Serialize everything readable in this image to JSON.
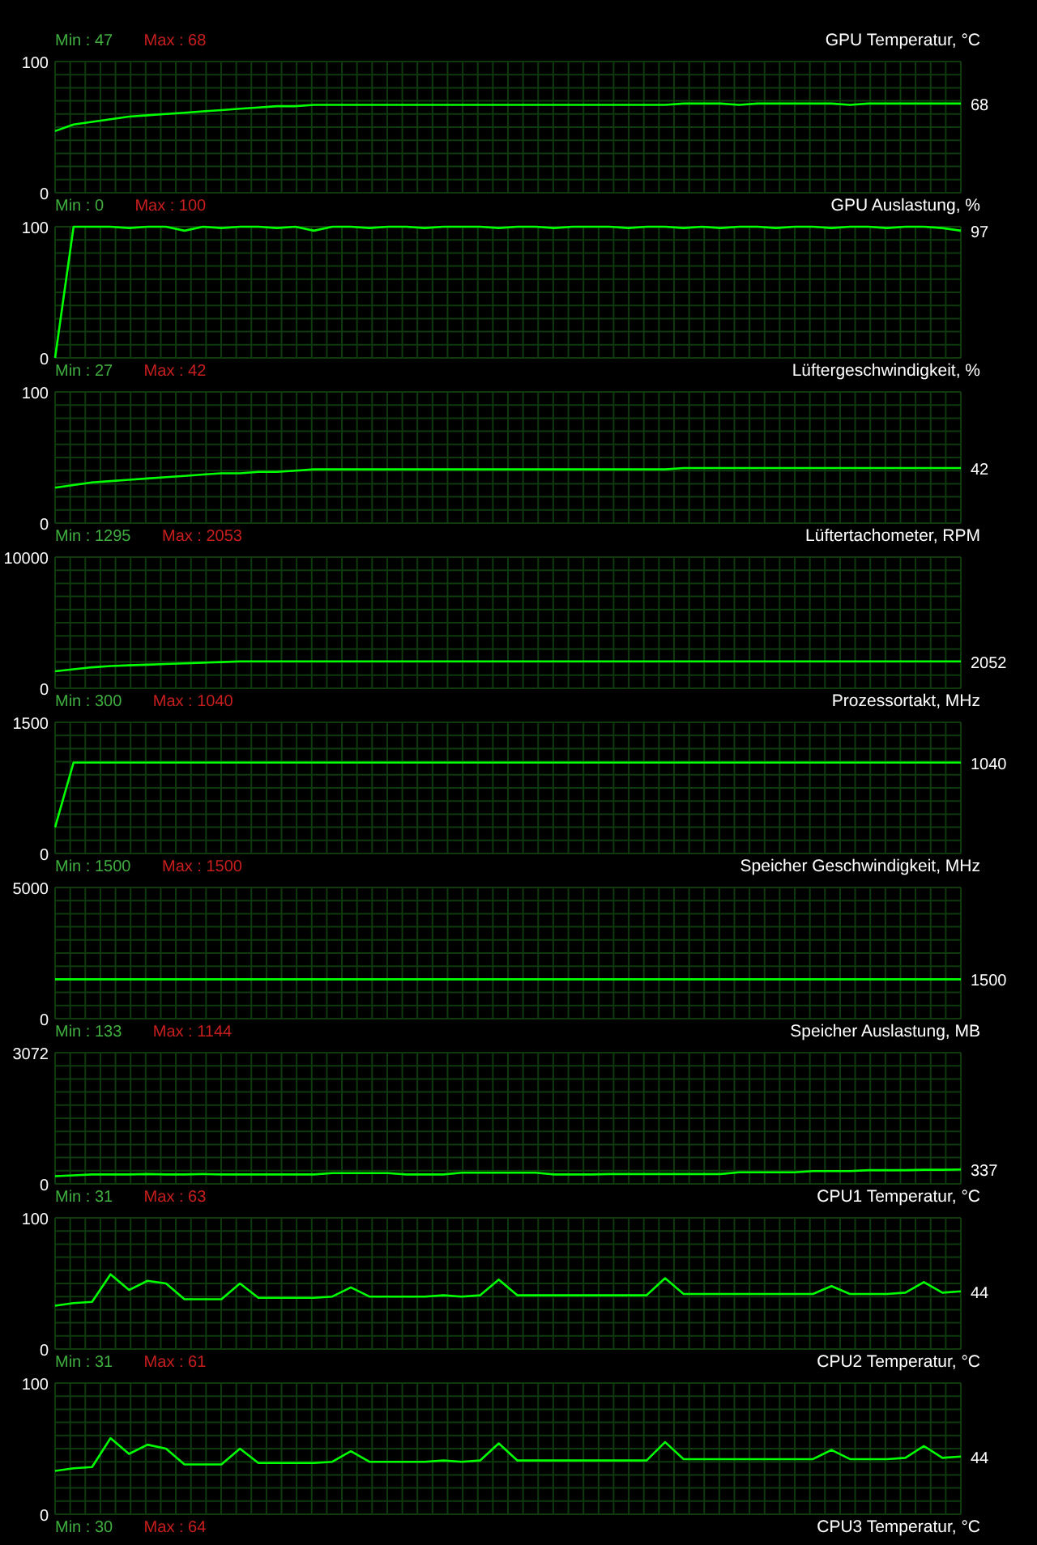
{
  "chart_data": [
    {
      "type": "line",
      "title": "GPU Temperatur, °C",
      "categories": [
        null,
        null,
        null,
        null,
        null,
        null,
        null,
        null,
        null,
        null,
        null,
        null,
        null,
        null,
        null,
        null,
        null,
        null,
        null,
        null,
        null,
        null,
        null,
        null,
        null,
        null,
        null,
        null,
        null,
        null,
        null,
        null,
        null,
        null,
        null,
        null,
        null,
        null,
        null,
        null,
        null,
        null,
        null,
        null,
        null,
        null,
        null,
        null,
        null,
        null
      ],
      "ylim": [
        0,
        100
      ],
      "yticks": [
        0,
        100
      ],
      "grid": true,
      "annotations": [
        "Min : 47",
        "Max : 68"
      ],
      "series": [
        {
          "color": "#00ff00",
          "values": [
            47,
            52,
            54,
            56,
            58,
            59,
            60,
            61,
            62,
            63,
            64,
            65,
            66,
            66,
            67,
            67,
            67,
            67,
            67,
            67,
            67,
            67,
            67,
            67,
            67,
            67,
            67,
            67,
            67,
            67,
            67,
            67,
            67,
            67,
            68,
            68,
            68,
            67,
            68,
            68,
            68,
            68,
            68,
            67,
            68,
            68,
            68,
            68,
            68,
            68
          ],
          "value_labels": [
            null,
            null,
            null,
            null,
            null,
            null,
            null,
            null,
            null,
            null,
            null,
            null,
            null,
            null,
            null,
            null,
            null,
            null,
            null,
            null,
            null,
            null,
            null,
            null,
            null,
            null,
            null,
            null,
            null,
            null,
            null,
            null,
            null,
            null,
            null,
            null,
            null,
            null,
            null,
            null,
            null,
            null,
            null,
            null,
            null,
            null,
            null,
            null,
            null,
            "68"
          ]
        }
      ]
    },
    {
      "type": "line",
      "title": "GPU Auslastung, %",
      "categories": [
        null,
        null,
        null,
        null,
        null,
        null,
        null,
        null,
        null,
        null,
        null,
        null,
        null,
        null,
        null,
        null,
        null,
        null,
        null,
        null,
        null,
        null,
        null,
        null,
        null,
        null,
        null,
        null,
        null,
        null,
        null,
        null,
        null,
        null,
        null,
        null,
        null,
        null,
        null,
        null,
        null,
        null,
        null,
        null,
        null,
        null,
        null,
        null,
        null,
        null
      ],
      "ylim": [
        0,
        100
      ],
      "yticks": [
        0,
        100
      ],
      "grid": true,
      "annotations": [
        "Min : 0",
        "Max : 100"
      ],
      "series": [
        {
          "color": "#00ff00",
          "values": [
            0,
            100,
            100,
            100,
            99,
            100,
            100,
            97,
            100,
            99,
            100,
            100,
            99,
            100,
            97,
            100,
            100,
            99,
            100,
            100,
            99,
            100,
            100,
            100,
            99,
            100,
            100,
            99,
            100,
            100,
            100,
            99,
            100,
            100,
            99,
            100,
            99,
            100,
            100,
            99,
            100,
            100,
            99,
            100,
            100,
            99,
            100,
            100,
            99,
            97
          ],
          "value_labels": [
            null,
            null,
            null,
            null,
            null,
            null,
            null,
            null,
            null,
            null,
            null,
            null,
            null,
            null,
            null,
            null,
            null,
            null,
            null,
            null,
            null,
            null,
            null,
            null,
            null,
            null,
            null,
            null,
            null,
            null,
            null,
            null,
            null,
            null,
            null,
            null,
            null,
            null,
            null,
            null,
            null,
            null,
            null,
            null,
            null,
            null,
            null,
            null,
            null,
            "97"
          ]
        }
      ]
    },
    {
      "type": "line",
      "title": "Lüftergeschwindigkeit, %",
      "categories": [
        null,
        null,
        null,
        null,
        null,
        null,
        null,
        null,
        null,
        null,
        null,
        null,
        null,
        null,
        null,
        null,
        null,
        null,
        null,
        null,
        null,
        null,
        null,
        null,
        null,
        null,
        null,
        null,
        null,
        null,
        null,
        null,
        null,
        null,
        null,
        null,
        null,
        null,
        null,
        null,
        null,
        null,
        null,
        null,
        null,
        null,
        null,
        null,
        null,
        null
      ],
      "ylim": [
        0,
        100
      ],
      "yticks": [
        0,
        100
      ],
      "grid": true,
      "annotations": [
        "Min : 27",
        "Max : 42"
      ],
      "series": [
        {
          "color": "#00ff00",
          "values": [
            27,
            29,
            31,
            32,
            33,
            34,
            35,
            36,
            37,
            38,
            38,
            39,
            39,
            40,
            41,
            41,
            41,
            41,
            41,
            41,
            41,
            41,
            41,
            41,
            41,
            41,
            41,
            41,
            41,
            41,
            41,
            41,
            41,
            41,
            42,
            42,
            42,
            42,
            42,
            42,
            42,
            42,
            42,
            42,
            42,
            42,
            42,
            42,
            42,
            42
          ],
          "value_labels": [
            null,
            null,
            null,
            null,
            null,
            null,
            null,
            null,
            null,
            null,
            null,
            null,
            null,
            null,
            null,
            null,
            null,
            null,
            null,
            null,
            null,
            null,
            null,
            null,
            null,
            null,
            null,
            null,
            null,
            null,
            null,
            null,
            null,
            null,
            null,
            null,
            null,
            null,
            null,
            null,
            null,
            null,
            null,
            null,
            null,
            null,
            null,
            null,
            null,
            "42"
          ]
        }
      ]
    },
    {
      "type": "line",
      "title": "Lüftertachometer, RPM",
      "categories": [
        null,
        null,
        null,
        null,
        null,
        null,
        null,
        null,
        null,
        null,
        null,
        null,
        null,
        null,
        null,
        null,
        null,
        null,
        null,
        null,
        null,
        null,
        null,
        null,
        null,
        null,
        null,
        null,
        null,
        null,
        null,
        null,
        null,
        null,
        null,
        null,
        null,
        null,
        null,
        null,
        null,
        null,
        null,
        null,
        null,
        null,
        null,
        null,
        null,
        null
      ],
      "ylim": [
        0,
        10000
      ],
      "yticks": [
        0,
        10000
      ],
      "grid": true,
      "annotations": [
        "Min : 1295",
        "Max : 2053"
      ],
      "series": [
        {
          "color": "#00ff00",
          "values": [
            1300,
            1450,
            1600,
            1700,
            1750,
            1800,
            1850,
            1900,
            1950,
            2000,
            2050,
            2050,
            2050,
            2050,
            2050,
            2050,
            2050,
            2050,
            2050,
            2050,
            2050,
            2050,
            2050,
            2050,
            2050,
            2050,
            2050,
            2050,
            2050,
            2050,
            2050,
            2050,
            2050,
            2050,
            2050,
            2050,
            2050,
            2050,
            2050,
            2050,
            2050,
            2050,
            2050,
            2050,
            2050,
            2050,
            2050,
            2050,
            2050,
            2052
          ],
          "value_labels": [
            null,
            null,
            null,
            null,
            null,
            null,
            null,
            null,
            null,
            null,
            null,
            null,
            null,
            null,
            null,
            null,
            null,
            null,
            null,
            null,
            null,
            null,
            null,
            null,
            null,
            null,
            null,
            null,
            null,
            null,
            null,
            null,
            null,
            null,
            null,
            null,
            null,
            null,
            null,
            null,
            null,
            null,
            null,
            null,
            null,
            null,
            null,
            null,
            null,
            "2052"
          ]
        }
      ]
    },
    {
      "type": "line",
      "title": "Prozessortakt, MHz",
      "categories": [
        null,
        null,
        null,
        null,
        null,
        null,
        null,
        null,
        null,
        null,
        null,
        null,
        null,
        null,
        null,
        null,
        null,
        null,
        null,
        null,
        null,
        null,
        null,
        null,
        null,
        null,
        null,
        null,
        null,
        null,
        null,
        null,
        null,
        null,
        null,
        null,
        null,
        null,
        null,
        null,
        null,
        null,
        null,
        null,
        null,
        null,
        null,
        null,
        null,
        null
      ],
      "ylim": [
        0,
        1500
      ],
      "yticks": [
        0,
        1500
      ],
      "grid": true,
      "annotations": [
        "Min : 300",
        "Max : 1040"
      ],
      "series": [
        {
          "color": "#00ff00",
          "values": [
            300,
            1040,
            1040,
            1040,
            1040,
            1040,
            1040,
            1040,
            1040,
            1040,
            1040,
            1040,
            1040,
            1040,
            1040,
            1040,
            1040,
            1040,
            1040,
            1040,
            1040,
            1040,
            1040,
            1040,
            1040,
            1040,
            1040,
            1040,
            1040,
            1040,
            1040,
            1040,
            1040,
            1040,
            1040,
            1040,
            1040,
            1040,
            1040,
            1040,
            1040,
            1040,
            1040,
            1040,
            1040,
            1040,
            1040,
            1040,
            1040,
            1040
          ],
          "value_labels": [
            null,
            null,
            null,
            null,
            null,
            null,
            null,
            null,
            null,
            null,
            null,
            null,
            null,
            null,
            null,
            null,
            null,
            null,
            null,
            null,
            null,
            null,
            null,
            null,
            null,
            null,
            null,
            null,
            null,
            null,
            null,
            null,
            null,
            null,
            null,
            null,
            null,
            null,
            null,
            null,
            null,
            null,
            null,
            null,
            null,
            null,
            null,
            null,
            null,
            "1040"
          ]
        }
      ]
    },
    {
      "type": "line",
      "title": "Speicher Geschwindigkeit, MHz",
      "categories": [
        null,
        null,
        null,
        null,
        null,
        null,
        null,
        null,
        null,
        null,
        null,
        null,
        null,
        null,
        null,
        null,
        null,
        null,
        null,
        null,
        null,
        null,
        null,
        null,
        null,
        null,
        null,
        null,
        null,
        null,
        null,
        null,
        null,
        null,
        null,
        null,
        null,
        null,
        null,
        null,
        null,
        null,
        null,
        null,
        null,
        null,
        null,
        null,
        null,
        null
      ],
      "ylim": [
        0,
        5000
      ],
      "yticks": [
        0,
        5000
      ],
      "grid": true,
      "annotations": [
        "Min : 1500",
        "Max : 1500"
      ],
      "series": [
        {
          "color": "#00ff00",
          "values": [
            1500,
            1500,
            1500,
            1500,
            1500,
            1500,
            1500,
            1500,
            1500,
            1500,
            1500,
            1500,
            1500,
            1500,
            1500,
            1500,
            1500,
            1500,
            1500,
            1500,
            1500,
            1500,
            1500,
            1500,
            1500,
            1500,
            1500,
            1500,
            1500,
            1500,
            1500,
            1500,
            1500,
            1500,
            1500,
            1500,
            1500,
            1500,
            1500,
            1500,
            1500,
            1500,
            1500,
            1500,
            1500,
            1500,
            1500,
            1500,
            1500,
            1500
          ],
          "value_labels": [
            null,
            null,
            null,
            null,
            null,
            null,
            null,
            null,
            null,
            null,
            null,
            null,
            null,
            null,
            null,
            null,
            null,
            null,
            null,
            null,
            null,
            null,
            null,
            null,
            null,
            null,
            null,
            null,
            null,
            null,
            null,
            null,
            null,
            null,
            null,
            null,
            null,
            null,
            null,
            null,
            null,
            null,
            null,
            null,
            null,
            null,
            null,
            null,
            null,
            "1500"
          ]
        }
      ]
    },
    {
      "type": "line",
      "title": "Speicher Auslastung, MB",
      "categories": [
        null,
        null,
        null,
        null,
        null,
        null,
        null,
        null,
        null,
        null,
        null,
        null,
        null,
        null,
        null,
        null,
        null,
        null,
        null,
        null,
        null,
        null,
        null,
        null,
        null,
        null,
        null,
        null,
        null,
        null,
        null,
        null,
        null,
        null,
        null,
        null,
        null,
        null,
        null,
        null,
        null,
        null,
        null,
        null,
        null,
        null,
        null,
        null,
        null,
        null
      ],
      "ylim": [
        0,
        3072
      ],
      "yticks": [
        0,
        3072
      ],
      "grid": true,
      "annotations": [
        "Min : 133",
        "Max : 1144"
      ],
      "series": [
        {
          "color": "#00ff00",
          "values": [
            180,
            200,
            220,
            220,
            220,
            230,
            220,
            220,
            230,
            220,
            220,
            220,
            220,
            220,
            220,
            250,
            250,
            250,
            250,
            220,
            220,
            220,
            260,
            260,
            260,
            260,
            260,
            220,
            220,
            220,
            230,
            230,
            230,
            230,
            230,
            230,
            230,
            270,
            270,
            270,
            270,
            300,
            300,
            300,
            320,
            320,
            320,
            330,
            330,
            337
          ],
          "value_labels": [
            null,
            null,
            null,
            null,
            null,
            null,
            null,
            null,
            null,
            null,
            null,
            null,
            null,
            null,
            null,
            null,
            null,
            null,
            null,
            null,
            null,
            null,
            null,
            null,
            null,
            null,
            null,
            null,
            null,
            null,
            null,
            null,
            null,
            null,
            null,
            null,
            null,
            null,
            null,
            null,
            null,
            null,
            null,
            null,
            null,
            null,
            null,
            null,
            null,
            "337"
          ]
        }
      ]
    },
    {
      "type": "line",
      "title": "CPU1 Temperatur, °C",
      "categories": [
        null,
        null,
        null,
        null,
        null,
        null,
        null,
        null,
        null,
        null,
        null,
        null,
        null,
        null,
        null,
        null,
        null,
        null,
        null,
        null,
        null,
        null,
        null,
        null,
        null,
        null,
        null,
        null,
        null,
        null,
        null,
        null,
        null,
        null,
        null,
        null,
        null,
        null,
        null,
        null,
        null,
        null,
        null,
        null,
        null,
        null,
        null,
        null,
        null,
        null
      ],
      "ylim": [
        0,
        100
      ],
      "yticks": [
        0,
        100
      ],
      "grid": true,
      "annotations": [
        "Min : 31",
        "Max : 63"
      ],
      "series": [
        {
          "color": "#00ff00",
          "values": [
            33,
            35,
            36,
            57,
            45,
            52,
            50,
            38,
            38,
            38,
            50,
            39,
            39,
            39,
            39,
            40,
            47,
            40,
            40,
            40,
            40,
            41,
            40,
            41,
            53,
            41,
            41,
            41,
            41,
            41,
            41,
            41,
            41,
            54,
            42,
            42,
            42,
            42,
            42,
            42,
            42,
            42,
            48,
            42,
            42,
            42,
            43,
            51,
            43,
            44
          ],
          "value_labels": [
            null,
            null,
            null,
            null,
            null,
            null,
            null,
            null,
            null,
            null,
            null,
            null,
            null,
            null,
            null,
            null,
            null,
            null,
            null,
            null,
            null,
            null,
            null,
            null,
            null,
            null,
            null,
            null,
            null,
            null,
            null,
            null,
            null,
            null,
            null,
            null,
            null,
            null,
            null,
            null,
            null,
            null,
            null,
            null,
            null,
            null,
            null,
            null,
            null,
            "44"
          ]
        }
      ]
    },
    {
      "type": "line",
      "title": "CPU2 Temperatur, °C",
      "categories": [
        null,
        null,
        null,
        null,
        null,
        null,
        null,
        null,
        null,
        null,
        null,
        null,
        null,
        null,
        null,
        null,
        null,
        null,
        null,
        null,
        null,
        null,
        null,
        null,
        null,
        null,
        null,
        null,
        null,
        null,
        null,
        null,
        null,
        null,
        null,
        null,
        null,
        null,
        null,
        null,
        null,
        null,
        null,
        null,
        null,
        null,
        null,
        null,
        null,
        null
      ],
      "ylim": [
        0,
        100
      ],
      "yticks": [
        0,
        100
      ],
      "grid": true,
      "annotations": [
        "Min : 31",
        "Max : 61"
      ],
      "series": [
        {
          "color": "#00ff00",
          "values": [
            33,
            35,
            36,
            58,
            46,
            53,
            50,
            38,
            38,
            38,
            50,
            39,
            39,
            39,
            39,
            40,
            48,
            40,
            40,
            40,
            40,
            41,
            40,
            41,
            54,
            41,
            41,
            41,
            41,
            41,
            41,
            41,
            41,
            55,
            42,
            42,
            42,
            42,
            42,
            42,
            42,
            42,
            49,
            42,
            42,
            42,
            43,
            52,
            43,
            44
          ],
          "value_labels": [
            null,
            null,
            null,
            null,
            null,
            null,
            null,
            null,
            null,
            null,
            null,
            null,
            null,
            null,
            null,
            null,
            null,
            null,
            null,
            null,
            null,
            null,
            null,
            null,
            null,
            null,
            null,
            null,
            null,
            null,
            null,
            null,
            null,
            null,
            null,
            null,
            null,
            null,
            null,
            null,
            null,
            null,
            null,
            null,
            null,
            null,
            null,
            null,
            null,
            "44"
          ]
        }
      ]
    },
    {
      "type": "other",
      "title": "CPU3 Temperatur, °C",
      "annotations": [
        "Min : 30",
        "Max : 64"
      ]
    }
  ]
}
